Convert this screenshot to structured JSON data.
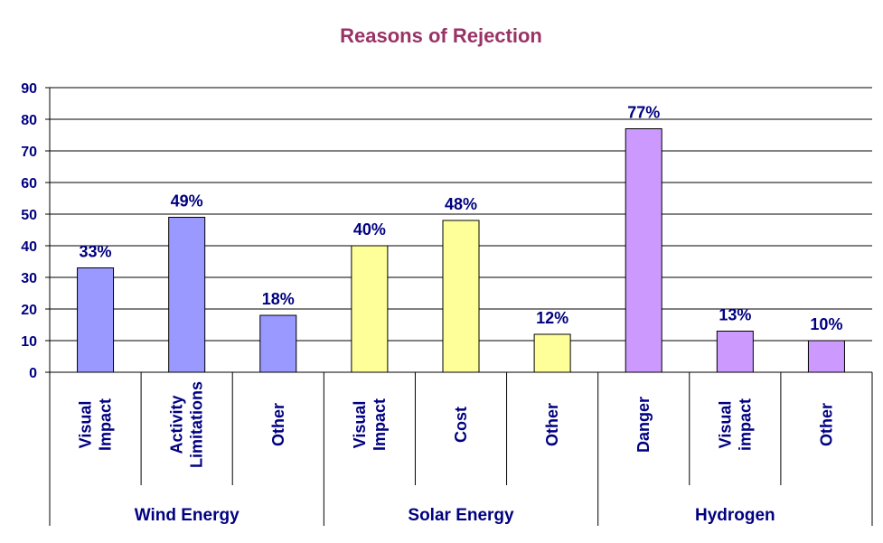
{
  "chart_data": {
    "type": "bar",
    "title": "Reasons of Rejection",
    "ylim": [
      0,
      90
    ],
    "yticks": [
      "0",
      "10",
      "20",
      "30",
      "40",
      "50",
      "60",
      "70",
      "80",
      "90"
    ],
    "grid": true,
    "categories": [
      {
        "lines": [
          "Visual",
          "Impact"
        ],
        "group": 0
      },
      {
        "lines": [
          "Activity",
          "Limitations"
        ],
        "group": 0
      },
      {
        "lines": [
          "Other"
        ],
        "group": 0
      },
      {
        "lines": [
          "Visual",
          "Impact"
        ],
        "group": 1
      },
      {
        "lines": [
          "Cost"
        ],
        "group": 1
      },
      {
        "lines": [
          "Other"
        ],
        "group": 1
      },
      {
        "lines": [
          "Danger"
        ],
        "group": 2
      },
      {
        "lines": [
          "Visual",
          "impact"
        ],
        "group": 2
      },
      {
        "lines": [
          "Other"
        ],
        "group": 2
      }
    ],
    "values": [
      33,
      49,
      18,
      40,
      48,
      12,
      77,
      13,
      10
    ],
    "data_labels": [
      "33%",
      "49%",
      "18%",
      "40%",
      "48%",
      "12%",
      "77%",
      "13%",
      "10%"
    ],
    "groups": [
      {
        "name": "Wind Energy",
        "color": "#9999ff"
      },
      {
        "name": "Solar Energy",
        "color": "#ffff99"
      },
      {
        "name": "Hydrogen",
        "color": "#cc99ff"
      }
    ],
    "colors": {
      "title": "#993366",
      "text": "#000080",
      "axis": "#000000",
      "grid": "#000000"
    }
  }
}
